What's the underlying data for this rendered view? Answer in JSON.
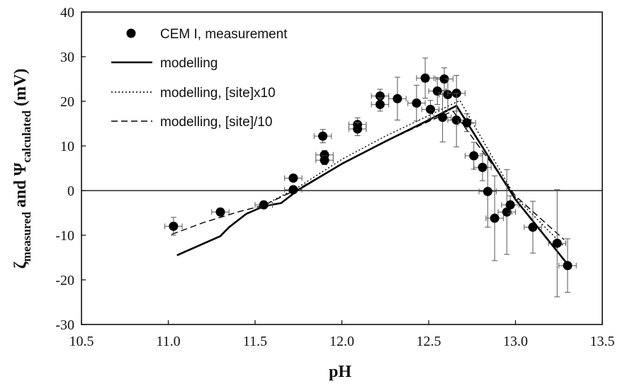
{
  "chart_data": {
    "type": "scatter",
    "xlabel": "pH",
    "ylabel": {
      "zeta_symbol": "ζ",
      "zeta_sub": "measured",
      "and_text": " and ",
      "psi_symbol": "Ψ",
      "psi_sub": "calculated",
      "unit": " (mV)"
    },
    "xlim": [
      10.5,
      13.5
    ],
    "ylim": [
      -30,
      40
    ],
    "xticks": [
      "10.5",
      "11.0",
      "11.5",
      "12.0",
      "12.5",
      "13.0",
      "13.5"
    ],
    "yticks": [
      "-30",
      "-20",
      "-10",
      "0",
      "10",
      "20",
      "30",
      "40"
    ],
    "zero_line": true,
    "grid": false,
    "legend_position": "top-left",
    "series": [
      {
        "name": "CEM I, measurement",
        "style": "points",
        "points": [
          {
            "x": 11.03,
            "y": -8.0,
            "xerr": 0.05,
            "yerr": 2.0
          },
          {
            "x": 11.3,
            "y": -4.8,
            "xerr": 0.05,
            "yerr": 0.8
          },
          {
            "x": 11.55,
            "y": -3.2,
            "xerr": 0.05,
            "yerr": 0.8
          },
          {
            "x": 11.72,
            "y": 2.8,
            "xerr": 0.05,
            "yerr": 0.8
          },
          {
            "x": 11.72,
            "y": 0.2,
            "xerr": 0.05,
            "yerr": 0.8
          },
          {
            "x": 11.89,
            "y": 12.2,
            "xerr": 0.05,
            "yerr": 1.5
          },
          {
            "x": 11.9,
            "y": 8.0,
            "xerr": 0.05,
            "yerr": 1.0
          },
          {
            "x": 11.9,
            "y": 6.8,
            "xerr": 0.05,
            "yerr": 1.0
          },
          {
            "x": 12.09,
            "y": 14.8,
            "xerr": 0.05,
            "yerr": 1.5
          },
          {
            "x": 12.09,
            "y": 13.8,
            "xerr": 0.05,
            "yerr": 1.5
          },
          {
            "x": 12.22,
            "y": 21.2,
            "xerr": 0.05,
            "yerr": 1.5
          },
          {
            "x": 12.22,
            "y": 19.3,
            "xerr": 0.05,
            "yerr": 1.5
          },
          {
            "x": 12.32,
            "y": 20.6,
            "xerr": 0.05,
            "yerr": 4.8
          },
          {
            "x": 12.43,
            "y": 19.6,
            "xerr": 0.05,
            "yerr": 4.0
          },
          {
            "x": 12.48,
            "y": 25.2,
            "xerr": 0.05,
            "yerr": 4.5
          },
          {
            "x": 12.51,
            "y": 18.2,
            "xerr": 0.05,
            "yerr": 2.0
          },
          {
            "x": 12.55,
            "y": 22.3,
            "xerr": 0.05,
            "yerr": 3.0
          },
          {
            "x": 12.58,
            "y": 16.4,
            "xerr": 0.05,
            "yerr": 5.5
          },
          {
            "x": 12.59,
            "y": 25.0,
            "xerr": 0.05,
            "yerr": 2.5
          },
          {
            "x": 12.61,
            "y": 21.5,
            "xerr": 0.05,
            "yerr": 3.5
          },
          {
            "x": 12.66,
            "y": 21.8,
            "xerr": 0.05,
            "yerr": 4.0
          },
          {
            "x": 12.66,
            "y": 15.8,
            "xerr": 0.05,
            "yerr": 6.0
          },
          {
            "x": 12.72,
            "y": 15.2,
            "xerr": 0.05,
            "yerr": 2.0
          },
          {
            "x": 12.76,
            "y": 7.8,
            "xerr": 0.05,
            "yerr": 3.0
          },
          {
            "x": 12.81,
            "y": 5.2,
            "xerr": 0.05,
            "yerr": 3.0
          },
          {
            "x": 12.84,
            "y": -0.2,
            "xerr": 0.05,
            "yerr": 8.0
          },
          {
            "x": 12.88,
            "y": -6.2,
            "xerr": 0.05,
            "yerr": 9.5
          },
          {
            "x": 12.95,
            "y": -4.8,
            "xerr": 0.05,
            "yerr": 9.5
          },
          {
            "x": 12.97,
            "y": -3.2,
            "xerr": 0.05,
            "yerr": 2.0
          },
          {
            "x": 13.1,
            "y": -8.2,
            "xerr": 0.05,
            "yerr": 5.8
          },
          {
            "x": 13.24,
            "y": -11.8,
            "xerr": 0.05,
            "yerr": 12.0
          },
          {
            "x": 13.3,
            "y": -16.8,
            "xerr": 0.05,
            "yerr": 6.0
          }
        ]
      },
      {
        "name": "modelling",
        "style": "solid",
        "x": [
          11.05,
          11.3,
          11.35,
          11.45,
          11.55,
          11.65,
          11.75,
          12.0,
          12.25,
          12.5,
          12.66,
          13.0,
          13.3
        ],
        "y": [
          -14.5,
          -10.2,
          -8.2,
          -5.2,
          -3.5,
          -2.8,
          0.2,
          6.0,
          11.0,
          15.8,
          19.0,
          -2.0,
          -16.5
        ]
      },
      {
        "name": "modelling, [site]x10",
        "style": "dotted",
        "x": [
          11.55,
          11.75,
          12.0,
          12.25,
          12.5,
          12.68,
          13.0,
          13.28
        ],
        "y": [
          -3.3,
          0.8,
          7.0,
          12.2,
          16.8,
          20.2,
          -1.5,
          -12.5
        ]
      },
      {
        "name": "modelling, [site]/10",
        "style": "dashed",
        "x": [
          11.02,
          11.2,
          11.4,
          11.55,
          11.75,
          12.0,
          12.25,
          12.5,
          12.64,
          13.0,
          13.28
        ],
        "y": [
          -9.8,
          -7.2,
          -4.8,
          -3.3,
          0.4,
          6.0,
          11.0,
          15.5,
          17.8,
          -1.2,
          -11.0
        ]
      }
    ]
  }
}
